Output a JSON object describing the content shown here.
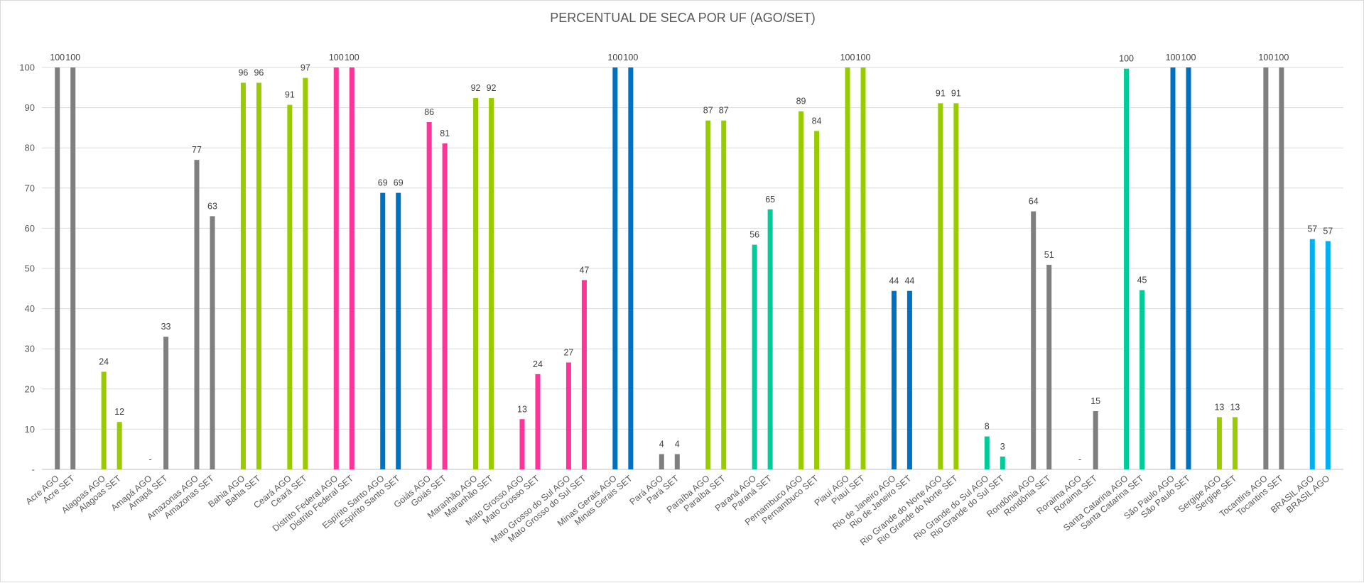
{
  "chart_data": {
    "type": "bar",
    "title": "PERCENTUAL DE SECA POR UF (AGO/SET)",
    "xlabel": "",
    "ylabel": "",
    "ylim": [
      0,
      100
    ],
    "yticks": [
      0,
      10,
      20,
      30,
      40,
      50,
      60,
      70,
      80,
      90,
      100
    ],
    "ytick_labels": [
      "-",
      "10",
      "20",
      "30",
      "40",
      "50",
      "60",
      "70",
      "80",
      "90",
      "100"
    ],
    "grid": true,
    "legend": "none",
    "categories": [
      "Acre AGO",
      "Acre SET",
      "Alagoas AGO",
      "Alagoas SET",
      "Amapá AGO",
      "Amapá SET",
      "Amazonas AGO",
      "Amazonas SET",
      "Bahia AGO",
      "Bahia SET",
      "Ceará AGO",
      "Ceará SET",
      "Distrito Federal AGO",
      "Distrito Federal SET",
      "Espírito Santo AGO",
      "Espírito Santo SET",
      "Goiás AGO",
      "Goiás SET",
      "Maranhão AGO",
      "Maranhão SET",
      "Mato Grosso AGO",
      "Mato Grosso SET",
      "Mato Grosso do Sul AGO",
      "Mato Grosso do Sul SET",
      "Minas Gerais AGO",
      "Minas Gerais SET",
      "Pará AGO",
      "Pará SET",
      "Paraíba AGO",
      "Paraíba SET",
      "Paraná AGO",
      "Paraná SET",
      "Pernambuco AGO",
      "Pernambuco SET",
      "Piauí AGO",
      "Piauí SET",
      "Rio de Janeiro AGO",
      "Rio de Janeiro SET",
      "Rio Grande do Norte AGO",
      "Rio Grande do Norte SET",
      "Rio Grande do Sul AGO",
      "Rio Grande do Sul SET",
      "Rondônia AGO",
      "Rondônia SET",
      "Roraima AGO",
      "Roraima SET",
      "Santa Catarina AGO",
      "Santa Catarina SET",
      "São Paulo AGO",
      "São Paulo SET",
      "Sergipe AGO",
      "Sergipe SET",
      "Tocantins AGO",
      "Tocantins SET",
      "BRASIL AGO",
      "BRASIL AGO"
    ],
    "values": [
      100,
      100,
      24.3,
      11.8,
      0,
      33,
      77,
      63,
      96.2,
      96.2,
      90.7,
      97.4,
      100,
      100,
      68.8,
      68.8,
      86.4,
      81.1,
      92.4,
      92.4,
      12.5,
      23.7,
      26.6,
      47.1,
      100,
      100,
      3.8,
      3.8,
      86.8,
      86.8,
      55.9,
      64.7,
      89.1,
      84.2,
      100,
      100,
      44.4,
      44.4,
      91.1,
      91.1,
      8.2,
      3.2,
      64.2,
      50.9,
      0,
      14.5,
      99.7,
      44.6,
      100,
      100,
      13,
      13,
      100,
      100,
      57.3,
      56.8
    ],
    "data_labels": [
      "100",
      "100",
      "24",
      "12",
      "-",
      "33",
      "77",
      "63",
      "96",
      "96",
      "91",
      "97",
      "100",
      "100",
      "69",
      "69",
      "86",
      "81",
      "92",
      "92",
      "13",
      "24",
      "27",
      "47",
      "100",
      "100",
      "4",
      "4",
      "87",
      "87",
      "56",
      "65",
      "89",
      "84",
      "100",
      "100",
      "44",
      "44",
      "91",
      "91",
      "8",
      "3",
      "64",
      "51",
      "-",
      "15",
      "100",
      "45",
      "100",
      "100",
      "13",
      "13",
      "100",
      "100",
      "57",
      "57"
    ],
    "colors": [
      "#7f7f7f",
      "#7f7f7f",
      "#99cc00",
      "#99cc00",
      "#7f7f7f",
      "#7f7f7f",
      "#7f7f7f",
      "#7f7f7f",
      "#99cc00",
      "#99cc00",
      "#99cc00",
      "#99cc00",
      "#ff3399",
      "#ff3399",
      "#0070c0",
      "#0070c0",
      "#ff3399",
      "#ff3399",
      "#99cc00",
      "#99cc00",
      "#ff3399",
      "#ff3399",
      "#ff3399",
      "#ff3399",
      "#0070c0",
      "#0070c0",
      "#7f7f7f",
      "#7f7f7f",
      "#99cc00",
      "#99cc00",
      "#00cc99",
      "#00cc99",
      "#99cc00",
      "#99cc00",
      "#99cc00",
      "#99cc00",
      "#0070c0",
      "#0070c0",
      "#99cc00",
      "#99cc00",
      "#00cc99",
      "#00cc99",
      "#7f7f7f",
      "#7f7f7f",
      "#7f7f7f",
      "#7f7f7f",
      "#00cc99",
      "#00cc99",
      "#0070c0",
      "#0070c0",
      "#99cc00",
      "#99cc00",
      "#7f7f7f",
      "#7f7f7f",
      "#00b0f0",
      "#00b0f0"
    ]
  }
}
